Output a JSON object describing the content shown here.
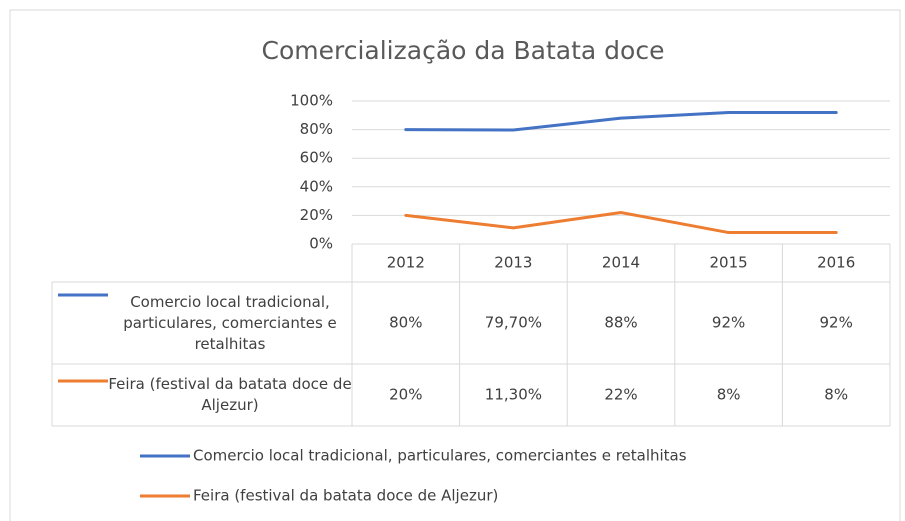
{
  "chart_data": {
    "type": "line",
    "title": "Comercialização da Batata doce",
    "categories": [
      "2012",
      "2013",
      "2014",
      "2015",
      "2016"
    ],
    "series": [
      {
        "name": "Comercio local tradicional, particulares, comerciantes e retalhitas",
        "color": "#4472c4",
        "values": [
          80,
          79.7,
          88,
          92,
          92
        ],
        "value_labels": [
          "80%",
          "79,70%",
          "88%",
          "92%",
          "92%"
        ]
      },
      {
        "name": "Feira (festival da batata doce de Aljezur)",
        "color": "#ed7d31",
        "values": [
          20,
          11.3,
          22,
          8,
          8
        ],
        "value_labels": [
          "20%",
          "11,30%",
          "22%",
          "8%",
          "8%"
        ]
      }
    ],
    "ylim": [
      0,
      100
    ],
    "yticks": [
      {
        "value": 0,
        "label": "0%"
      },
      {
        "value": 20,
        "label": "20%"
      },
      {
        "value": 40,
        "label": "40%"
      },
      {
        "value": 60,
        "label": "60%"
      },
      {
        "value": 80,
        "label": "80%"
      },
      {
        "value": 100,
        "label": "100%"
      }
    ],
    "grid": true,
    "legend": "bottom",
    "data_table": true
  }
}
